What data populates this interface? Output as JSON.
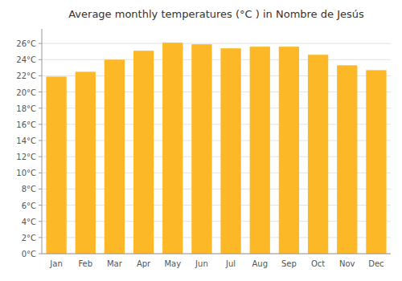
{
  "chart_data": {
    "type": "bar",
    "title": "Average monthly temperatures (°C ) in Nombre de Jesús",
    "categories": [
      "Jan",
      "Feb",
      "Mar",
      "Apr",
      "May",
      "Jun",
      "Jul",
      "Aug",
      "Sep",
      "Oct",
      "Nov",
      "Dec"
    ],
    "values": [
      21.9,
      22.5,
      24.0,
      25.1,
      26.1,
      25.9,
      25.4,
      25.6,
      25.6,
      24.6,
      23.3,
      22.7
    ],
    "color": "#FDB827",
    "ylim": [
      0,
      27.8
    ],
    "yticks": [
      {
        "value": 0,
        "label": "0°C"
      },
      {
        "value": 2,
        "label": "2°C"
      },
      {
        "value": 4,
        "label": "4°C"
      },
      {
        "value": 6,
        "label": "6°C"
      },
      {
        "value": 8,
        "label": "8°C"
      },
      {
        "value": 10,
        "label": "10°C"
      },
      {
        "value": 12,
        "label": "12°C"
      },
      {
        "value": 14,
        "label": "14°C"
      },
      {
        "value": 16,
        "label": "16°C"
      },
      {
        "value": 18,
        "label": "18°C"
      },
      {
        "value": 20,
        "label": "20°C"
      },
      {
        "value": 22,
        "label": "22°C"
      },
      {
        "value": 24,
        "label": "24°C"
      },
      {
        "value": 26,
        "label": "26°C"
      }
    ],
    "grid": true
  }
}
